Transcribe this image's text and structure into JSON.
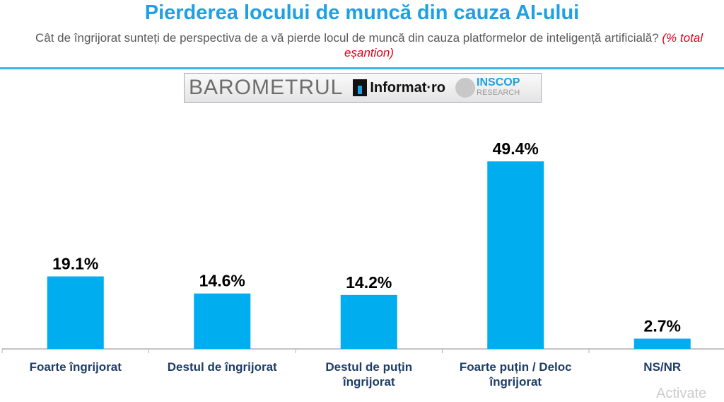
{
  "chart_data": {
    "type": "bar",
    "title": "Pierderea locului de muncă din cauza AI-ului",
    "subtitle": "Cât de îngrijorat sunteți de perspectiva de a vă pierde locul de muncă din cauza platformelor de inteligență artificială?",
    "subtitle_note": "(% total eșantion)",
    "categories": [
      "Foarte îngrijorat",
      "Destul de îngrijorat",
      "Destul de puțin îngrijorat",
      "Foarte puțin / Deloc îngrijorat",
      "NS/NR"
    ],
    "values": [
      19.1,
      14.6,
      14.2,
      49.4,
      2.7
    ],
    "data_labels": [
      "19.1%",
      "14.6%",
      "14.2%",
      "49.4%",
      "2.7%"
    ],
    "ylim": [
      0,
      60
    ],
    "bar_color": "#00aeef",
    "grid": false
  },
  "logo": {
    "barometru": "BAROMETRUL",
    "informat": "Informat·ro",
    "inscop": "INSCOP",
    "research": "RESEARCH"
  },
  "watermark": "Activate"
}
